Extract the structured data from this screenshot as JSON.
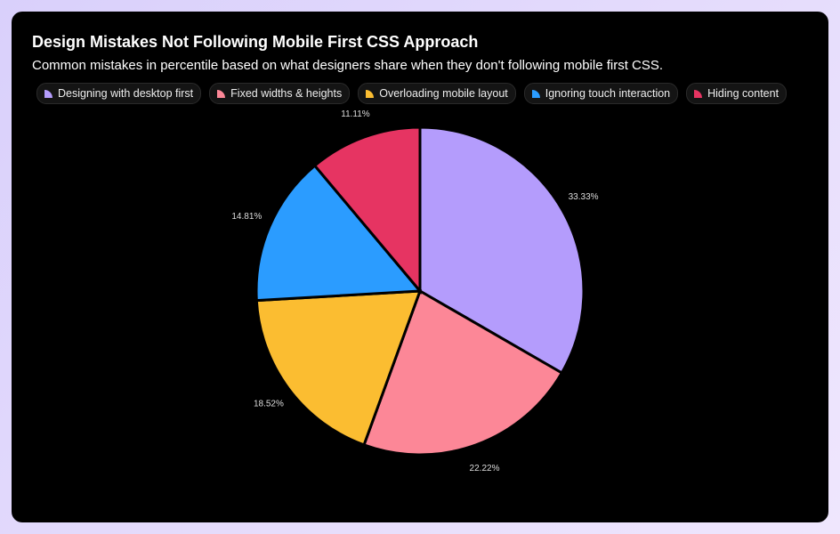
{
  "chart_data": {
    "type": "pie",
    "title": "Design Mistakes Not Following Mobile First CSS Approach",
    "subtitle": "Common mistakes in percentile based on what designers share when they don't following mobile first CSS.",
    "legend_placement": "top",
    "slices": [
      {
        "name": "Designing with desktop first",
        "value": 33.33,
        "label": "33.33%",
        "color": "#b49cfc"
      },
      {
        "name": "Fixed widths & heights",
        "value": 22.22,
        "label": "22.22%",
        "color": "#fc8797"
      },
      {
        "name": "Overloading mobile layout",
        "value": 18.52,
        "label": "18.52%",
        "color": "#fbbd31"
      },
      {
        "name": "Ignoring touch interaction",
        "value": 14.81,
        "label": "14.81%",
        "color": "#2b9cff"
      },
      {
        "name": "Hiding content",
        "value": 11.11,
        "label": "11.11%",
        "color": "#e63462"
      }
    ]
  }
}
